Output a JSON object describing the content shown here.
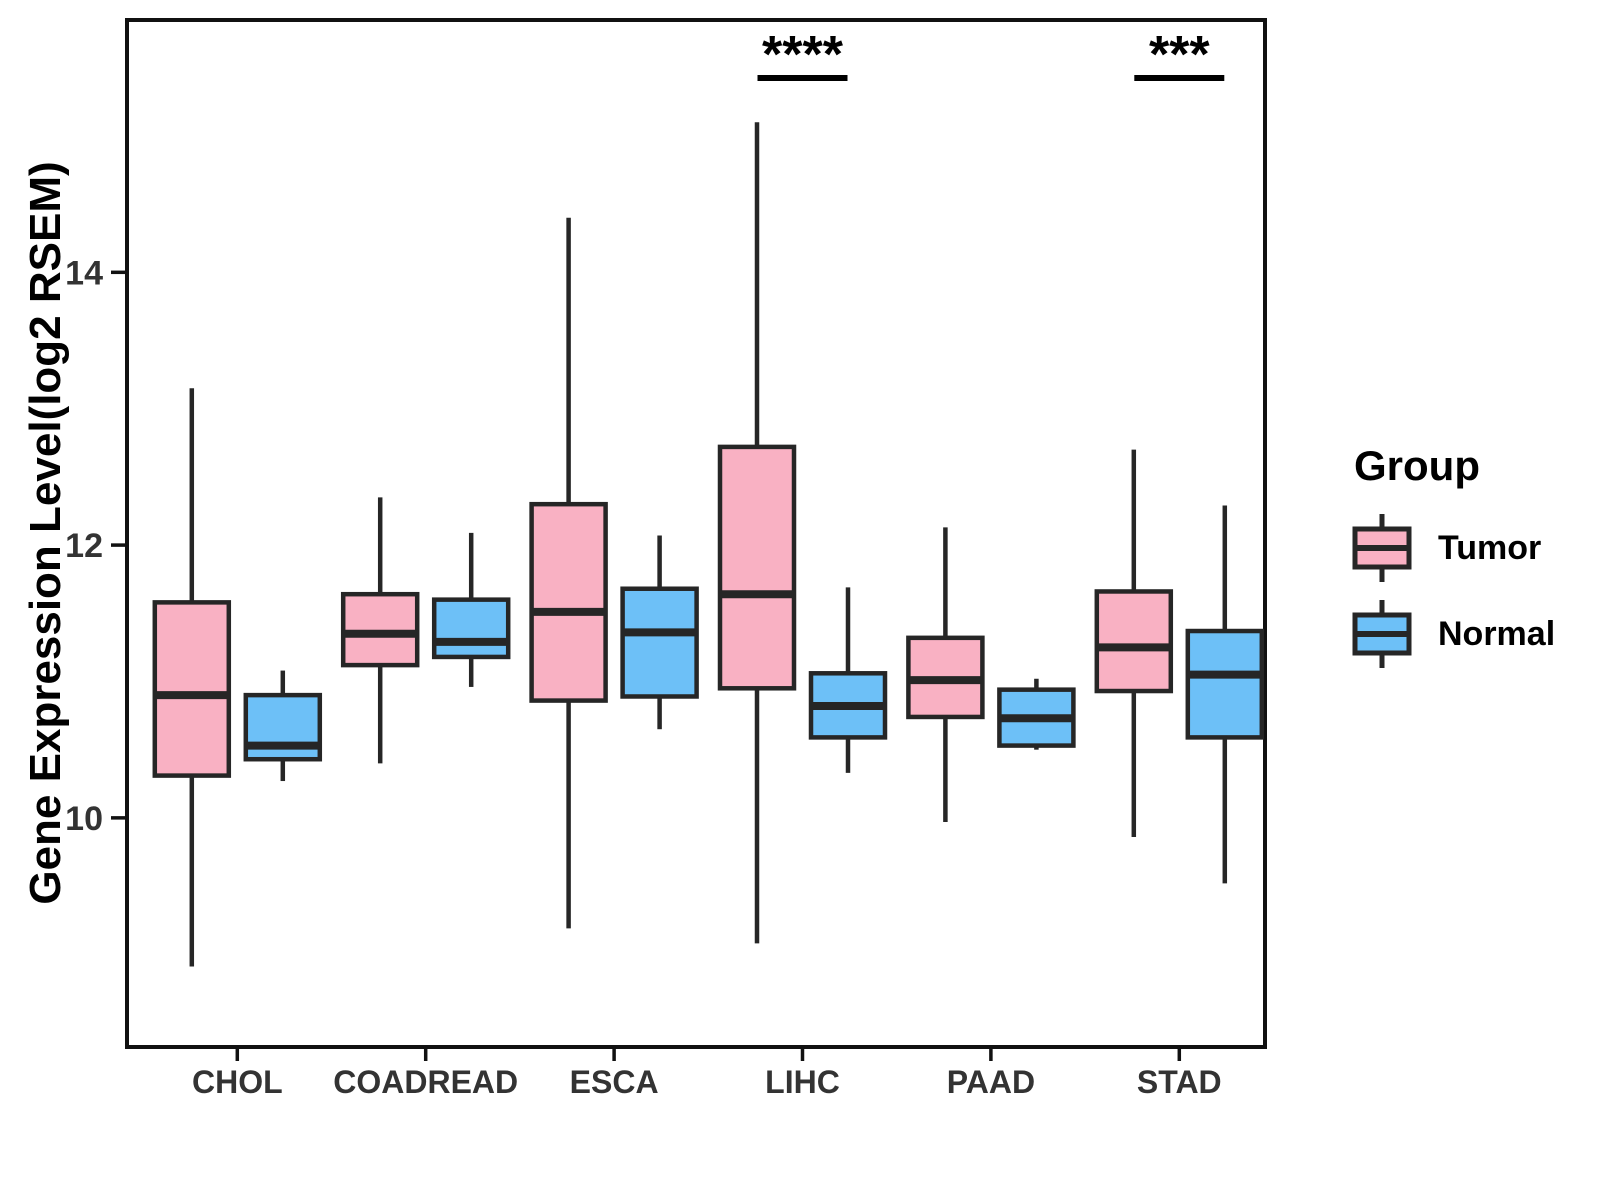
{
  "figure": {
    "y_axis_title": "Gene Expression Level(log2 RSEM)",
    "legend": {
      "title": "Group",
      "items": [
        {
          "label": "Tumor",
          "color": "#F9B1C3"
        },
        {
          "label": "Normal",
          "color": "#6DC0F7"
        }
      ]
    }
  },
  "chart_data": {
    "type": "boxplot",
    "title": "",
    "xlabel": "",
    "ylabel": "Gene Expression Level(log2 RSEM)",
    "grid": false,
    "legend_position": "right",
    "categories": [
      "CHOL",
      "COADREAD",
      "ESCA",
      "LIHC",
      "PAAD",
      "STAD"
    ],
    "stats_order": [
      "min",
      "q1",
      "median",
      "q3",
      "max"
    ],
    "series": [
      {
        "name": "Tumor",
        "color": "#F9B1C3",
        "values": [
          [
            8.91,
            10.31,
            10.9,
            11.58,
            13.15
          ],
          [
            10.4,
            11.12,
            11.35,
            11.64,
            12.35
          ],
          [
            9.19,
            10.86,
            11.51,
            12.3,
            14.4
          ],
          [
            9.08,
            10.95,
            11.64,
            12.72,
            15.1
          ],
          [
            9.97,
            10.74,
            11.01,
            11.32,
            12.13
          ],
          [
            9.86,
            10.93,
            11.25,
            11.66,
            12.7
          ]
        ]
      },
      {
        "name": "Normal",
        "color": "#6DC0F7",
        "values": [
          [
            10.27,
            10.43,
            10.53,
            10.9,
            11.08
          ],
          [
            10.96,
            11.18,
            11.29,
            11.6,
            12.09
          ],
          [
            10.65,
            10.89,
            11.36,
            11.68,
            12.07
          ],
          [
            10.33,
            10.59,
            10.82,
            11.06,
            11.69
          ],
          [
            10.5,
            10.53,
            10.73,
            10.94,
            11.02
          ],
          [
            9.52,
            10.59,
            11.05,
            11.37,
            12.29
          ]
        ]
      }
    ],
    "yticks": [
      10,
      12,
      14
    ],
    "ylim": [
      8.32,
      15.85
    ],
    "significance": [
      {
        "category": "LIHC",
        "label": "****"
      },
      {
        "category": "STAD",
        "label": "***"
      }
    ],
    "box_border_color": "#262626",
    "axis_color": "#111111",
    "tick_label_color": "#333333"
  }
}
